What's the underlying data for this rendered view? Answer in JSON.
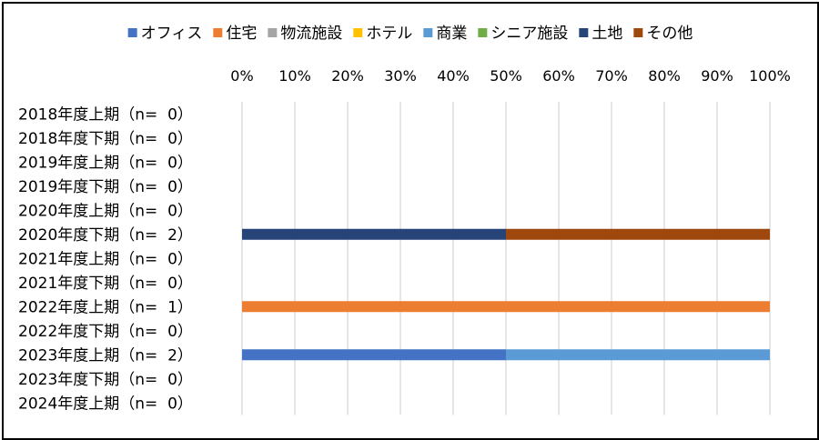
{
  "chart_data": {
    "type": "bar",
    "orientation": "horizontal",
    "stacked": "percent",
    "title": "",
    "xlabel": "",
    "ylabel": "",
    "xlim": [
      0,
      100
    ],
    "x_ticks": [
      "0%",
      "10%",
      "20%",
      "30%",
      "40%",
      "50%",
      "60%",
      "70%",
      "80%",
      "90%",
      "100%"
    ],
    "x_axis_position": "top",
    "grid": true,
    "legend_position": "top",
    "categories": [
      "2018年度上期（n=  0）",
      "2018年度下期（n=  0）",
      "2019年度上期（n=  0）",
      "2019年度下期（n=  0）",
      "2020年度上期（n=  0）",
      "2020年度下期（n=  2）",
      "2021年度上期（n=  0）",
      "2021年度下期（n=  0）",
      "2022年度上期（n=  1）",
      "2022年度下期（n=  0）",
      "2023年度上期（n=  2）",
      "2023年度下期（n=  0）",
      "2024年度上期（n=  0）"
    ],
    "series": [
      {
        "name": "オフィス",
        "color": "#4472C4",
        "values": [
          0,
          0,
          0,
          0,
          0,
          0,
          0,
          0,
          0,
          0,
          50,
          0,
          0
        ]
      },
      {
        "name": "住宅",
        "color": "#ED7D31",
        "values": [
          0,
          0,
          0,
          0,
          0,
          0,
          0,
          0,
          100,
          0,
          0,
          0,
          0
        ]
      },
      {
        "name": "物流施設",
        "color": "#A5A5A5",
        "values": [
          0,
          0,
          0,
          0,
          0,
          0,
          0,
          0,
          0,
          0,
          0,
          0,
          0
        ]
      },
      {
        "name": "ホテル",
        "color": "#FFC000",
        "values": [
          0,
          0,
          0,
          0,
          0,
          0,
          0,
          0,
          0,
          0,
          0,
          0,
          0
        ]
      },
      {
        "name": "商業",
        "color": "#5B9BD5",
        "values": [
          0,
          0,
          0,
          0,
          0,
          0,
          0,
          0,
          0,
          0,
          50,
          0,
          0
        ]
      },
      {
        "name": "シニア施設",
        "color": "#70AD47",
        "values": [
          0,
          0,
          0,
          0,
          0,
          0,
          0,
          0,
          0,
          0,
          0,
          0,
          0
        ]
      },
      {
        "name": "土地",
        "color": "#264478",
        "values": [
          0,
          0,
          0,
          0,
          0,
          50,
          0,
          0,
          0,
          0,
          0,
          0,
          0
        ]
      },
      {
        "name": "その他",
        "color": "#9E480E",
        "values": [
          0,
          0,
          0,
          0,
          0,
          50,
          0,
          0,
          0,
          0,
          0,
          0,
          0
        ]
      }
    ],
    "gridline_color": "#D9D9D9"
  }
}
